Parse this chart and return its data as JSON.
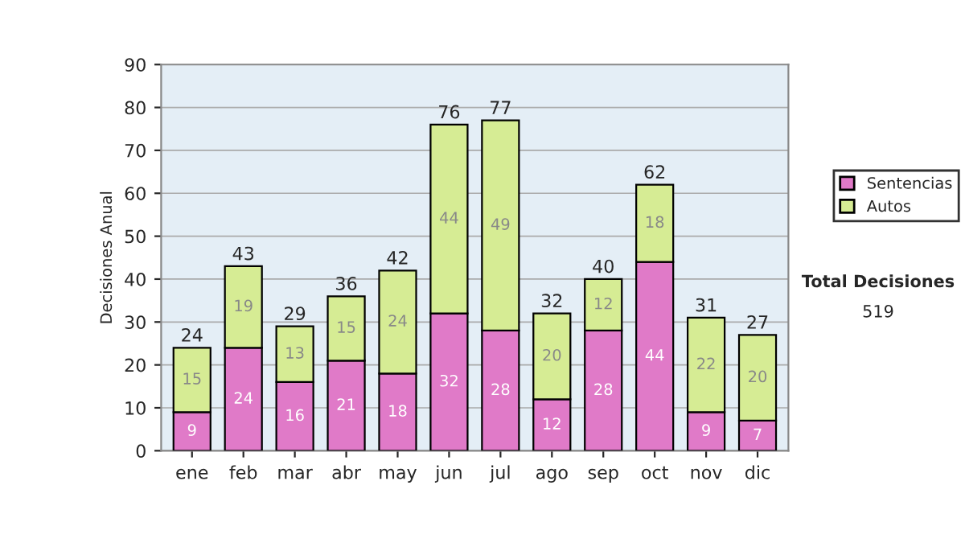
{
  "chart_data": {
    "type": "bar",
    "stacked": true,
    "ylabel": "Decisiones Anual",
    "categories": [
      "ene",
      "feb",
      "mar",
      "abr",
      "may",
      "jun",
      "jul",
      "ago",
      "sep",
      "oct",
      "nov",
      "dic"
    ],
    "series": [
      {
        "name": "Sentencias",
        "color": "#e07ac8",
        "values": [
          9,
          24,
          16,
          21,
          18,
          32,
          28,
          12,
          28,
          44,
          9,
          7
        ]
      },
      {
        "name": "Autos",
        "color": "#d6ec94",
        "values": [
          15,
          19,
          13,
          15,
          24,
          44,
          49,
          20,
          12,
          18,
          22,
          20
        ]
      }
    ],
    "totals": [
      "24",
      "43",
      "29",
      "36",
      "42",
      "76",
      "77",
      "32",
      "40",
      "62",
      "31",
      "27"
    ],
    "data_labels": true,
    "ylim": [
      0,
      90
    ],
    "yticks": [
      0,
      10,
      20,
      30,
      40,
      50,
      60,
      70,
      80,
      90
    ],
    "grid": "y",
    "legend": "right",
    "annotations": [
      "Total Decisiones",
      "519"
    ]
  }
}
